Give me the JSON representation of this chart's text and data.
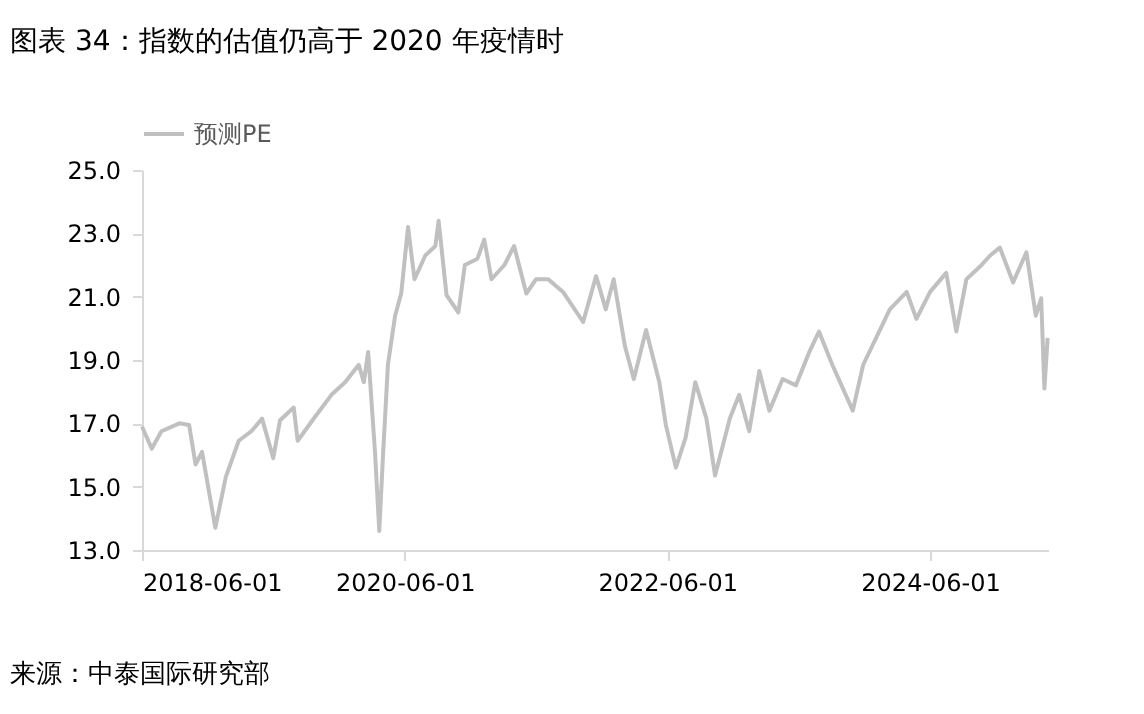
{
  "chart_data": {
    "type": "line",
    "title": "图表 34：指数的估值仍高于 2020 年疫情时",
    "x": [
      "2018-06-01",
      "2018-06-28",
      "2018-07-25",
      "2018-09-13",
      "2018-10-10",
      "2018-10-28",
      "2018-11-15",
      "2018-12-22",
      "2019-01-20",
      "2019-02-25",
      "2019-04-01",
      "2019-05-01",
      "2019-06-01",
      "2019-06-20",
      "2019-07-28",
      "2019-08-08",
      "2019-09-25",
      "2019-11-10",
      "2019-12-18",
      "2020-01-25",
      "2020-02-08",
      "2020-02-20",
      "2020-03-10",
      "2020-03-22",
      "2020-04-01",
      "2020-04-15",
      "2020-05-05",
      "2020-05-22",
      "2020-06-10",
      "2020-06-28",
      "2020-07-28",
      "2020-08-25",
      "2020-09-03",
      "2020-09-25",
      "2020-10-28",
      "2020-11-15",
      "2020-12-20",
      "2021-01-08",
      "2021-01-28",
      "2021-03-05",
      "2021-04-01",
      "2021-05-05",
      "2021-06-01",
      "2021-07-05",
      "2021-08-15",
      "2021-10-10",
      "2021-11-15",
      "2021-12-12",
      "2022-01-03",
      "2022-02-03",
      "2022-02-28",
      "2022-04-03",
      "2022-05-10",
      "2022-05-28",
      "2022-06-25",
      "2022-07-22",
      "2022-08-18",
      "2022-09-18",
      "2022-10-12",
      "2022-11-22",
      "2022-12-18",
      "2023-01-15",
      "2023-02-12",
      "2023-03-12",
      "2023-04-18",
      "2023-05-25",
      "2023-07-01",
      "2023-07-28",
      "2023-09-03",
      "2023-10-30",
      "2023-11-28",
      "2024-01-03",
      "2024-02-10",
      "2024-03-28",
      "2024-04-24",
      "2024-06-01",
      "2024-07-16",
      "2024-08-13",
      "2024-09-10",
      "2024-10-18",
      "2024-11-15",
      "2024-12-12",
      "2025-01-18",
      "2025-02-24",
      "2025-03-22",
      "2025-04-06",
      "2025-04-15",
      "2025-04-24"
    ],
    "series": [
      {
        "name": "预测PE",
        "color": "#c0c0c0",
        "values": [
          16.9,
          16.2,
          16.75,
          17.0,
          16.95,
          15.7,
          16.1,
          13.7,
          15.3,
          16.45,
          16.75,
          17.15,
          15.9,
          17.1,
          17.5,
          16.45,
          17.2,
          17.9,
          18.3,
          18.85,
          18.3,
          19.25,
          16.1,
          13.6,
          15.9,
          18.85,
          20.4,
          21.1,
          23.2,
          21.55,
          22.3,
          22.6,
          23.4,
          21.05,
          20.5,
          22.0,
          22.2,
          22.8,
          21.55,
          22.0,
          22.6,
          21.1,
          21.55,
          21.55,
          21.15,
          20.2,
          21.65,
          20.6,
          21.55,
          19.45,
          18.4,
          19.95,
          18.3,
          16.95,
          15.6,
          16.55,
          18.3,
          17.15,
          15.35,
          17.15,
          17.9,
          16.75,
          18.65,
          17.4,
          18.4,
          18.2,
          19.25,
          19.9,
          18.85,
          17.4,
          18.85,
          19.7,
          20.6,
          21.15,
          20.3,
          21.15,
          21.75,
          19.9,
          21.55,
          21.95,
          22.3,
          22.55,
          21.45,
          22.4,
          20.4,
          20.95,
          18.1,
          19.7
        ]
      }
    ],
    "xlim": [
      "2018-06-01",
      "2025-04-25"
    ],
    "xticks": [
      "2018-06-01",
      "2020-06-01",
      "2022-06-01",
      "2024-06-01"
    ],
    "ylim": [
      13,
      25
    ],
    "yticks": [
      {
        "value": 13,
        "label": "13.0"
      },
      {
        "value": 15,
        "label": "15.0"
      },
      {
        "value": 17,
        "label": "17.0"
      },
      {
        "value": 19,
        "label": "19.0"
      },
      {
        "value": 21,
        "label": "21.0"
      },
      {
        "value": 23,
        "label": "23.0"
      },
      {
        "value": 25,
        "label": "25.0"
      }
    ],
    "grid": false,
    "legend": "top",
    "line_style": "solid",
    "marker": "none",
    "annotations": [
      "来源：中泰国际研究部"
    ]
  }
}
